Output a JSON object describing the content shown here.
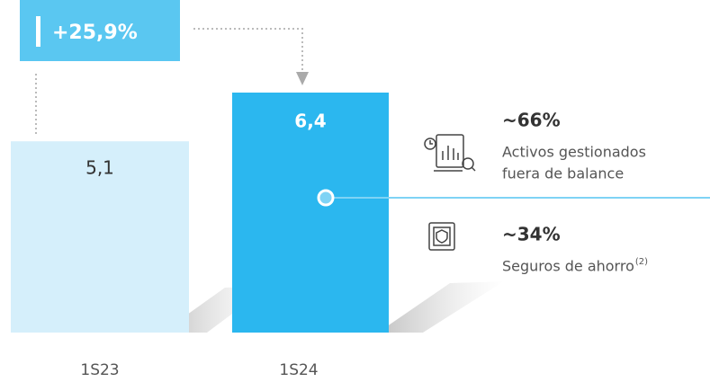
{
  "chart_data": {
    "type": "bar",
    "categories": [
      "1S23",
      "1S24"
    ],
    "values": [
      5.1,
      6.4
    ],
    "value_labels": [
      "5,1",
      "6,4"
    ],
    "colors": [
      "#d5effb",
      "#2bb7ef"
    ],
    "growth_label": "+25,9%",
    "annotations": [
      {
        "value": "~66%",
        "lines": [
          "Activos gestionados",
          "fuera de balance"
        ]
      },
      {
        "value": "~34%",
        "lines": [
          "Seguros de ahorro"
        ],
        "note": "(2)"
      }
    ]
  }
}
